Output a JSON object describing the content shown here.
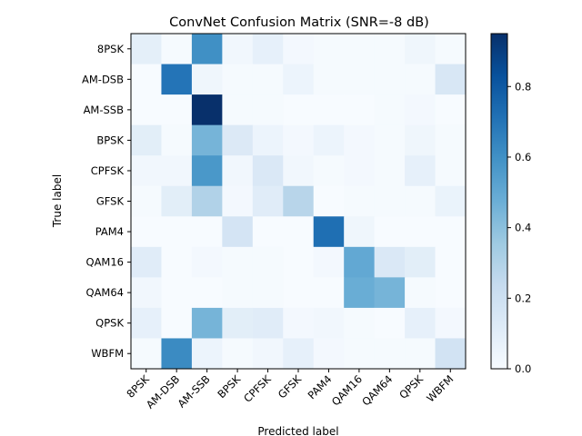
{
  "chart_data": {
    "type": "heatmap",
    "title": "ConvNet Confusion Matrix (SNR=-8 dB)",
    "xlabel": "Predicted label",
    "ylabel": "True label",
    "labels": [
      "8PSK",
      "AM-DSB",
      "AM-SSB",
      "BPSK",
      "CPFSK",
      "GFSK",
      "PAM4",
      "QAM16",
      "QAM64",
      "QPSK",
      "WBFM"
    ],
    "values": [
      [
        0.09,
        0.01,
        0.6,
        0.03,
        0.08,
        0.02,
        0.01,
        0.01,
        0.01,
        0.04,
        0.01
      ],
      [
        0.0,
        0.7,
        0.04,
        0.01,
        0.01,
        0.05,
        0.01,
        0.01,
        0.01,
        0.01,
        0.15
      ],
      [
        0.0,
        0.0,
        0.95,
        0.01,
        0.01,
        0.0,
        0.0,
        0.0,
        0.01,
        0.02,
        0.0
      ],
      [
        0.1,
        0.01,
        0.45,
        0.13,
        0.05,
        0.02,
        0.05,
        0.02,
        0.01,
        0.04,
        0.01
      ],
      [
        0.03,
        0.03,
        0.57,
        0.03,
        0.14,
        0.03,
        0.01,
        0.02,
        0.01,
        0.08,
        0.01
      ],
      [
        0.01,
        0.1,
        0.3,
        0.02,
        0.11,
        0.28,
        0.0,
        0.01,
        0.01,
        0.01,
        0.06
      ],
      [
        0.0,
        0.0,
        0.0,
        0.17,
        0.0,
        0.0,
        0.72,
        0.04,
        0.0,
        0.0,
        0.0
      ],
      [
        0.11,
        0.0,
        0.02,
        0.01,
        0.01,
        0.0,
        0.02,
        0.5,
        0.14,
        0.1,
        0.0
      ],
      [
        0.03,
        0.0,
        0.0,
        0.01,
        0.01,
        0.0,
        0.0,
        0.48,
        0.45,
        0.01,
        0.0
      ],
      [
        0.08,
        0.0,
        0.45,
        0.1,
        0.11,
        0.02,
        0.03,
        0.01,
        0.0,
        0.08,
        0.02
      ],
      [
        0.01,
        0.62,
        0.05,
        0.01,
        0.03,
        0.08,
        0.02,
        0.01,
        0.01,
        0.01,
        0.18
      ]
    ],
    "colorbar": {
      "min": 0.0,
      "max": 0.95,
      "ticks": [
        0.0,
        0.2,
        0.4,
        0.6,
        0.8
      ],
      "tick_labels": [
        "0.0",
        "0.2",
        "0.4",
        "0.6",
        "0.8"
      ],
      "colormap": "Blues"
    }
  }
}
